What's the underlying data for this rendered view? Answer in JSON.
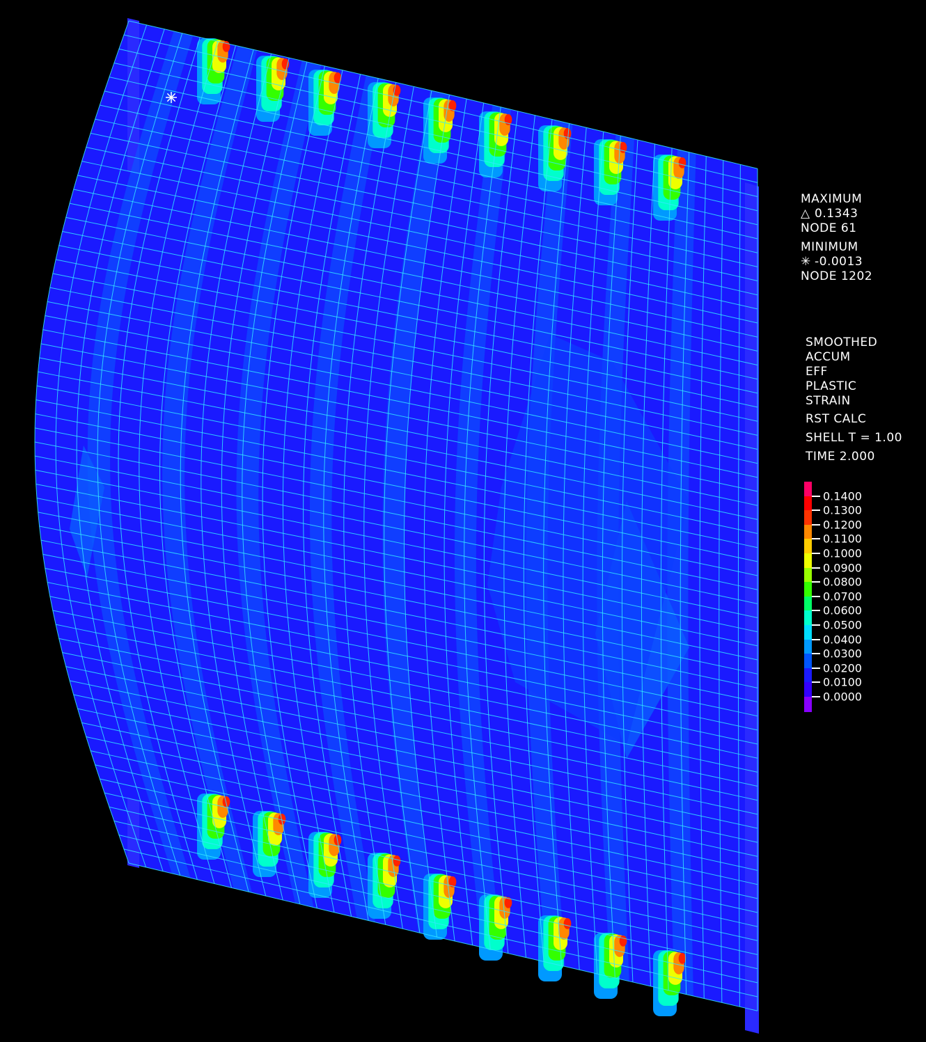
{
  "maximum": {
    "label": "MAXIMUM",
    "symbol": "△",
    "value": "0.1343",
    "node": "NODE 61"
  },
  "minimum": {
    "label": "MINIMUM",
    "symbol": "✳",
    "value": "-0.0013",
    "node": "NODE 1202"
  },
  "result": {
    "lines": [
      "SMOOTHED",
      "ACCUM",
      "EFF",
      "PLASTIC",
      "STRAIN"
    ]
  },
  "settings": {
    "calc": "RST CALC",
    "shell": "SHELL T = 1.00",
    "time": "TIME 2.000"
  },
  "legend": {
    "labels": [
      "0.1400",
      "0.1300",
      "0.1200",
      "0.1100",
      "0.1000",
      "0.0900",
      "0.0800",
      "0.0700",
      "0.0600",
      "0.0500",
      "0.0400",
      "0.0300",
      "0.0200",
      "0.0100",
      "0.0000"
    ],
    "colors": [
      "#ff0066",
      "#ff0000",
      "#ff3300",
      "#ff8800",
      "#ffcc00",
      "#eeff00",
      "#99ff00",
      "#33ff00",
      "#00ff66",
      "#00ffcc",
      "#00ddff",
      "#0099ff",
      "#0055ff",
      "#1a1aff",
      "#3300ff",
      "#8800ff"
    ]
  },
  "colors": {
    "background": "#000000",
    "base_fill": "#1a1aff",
    "mesh_line": "#33e6ff",
    "light_band": "#0a5cff"
  }
}
